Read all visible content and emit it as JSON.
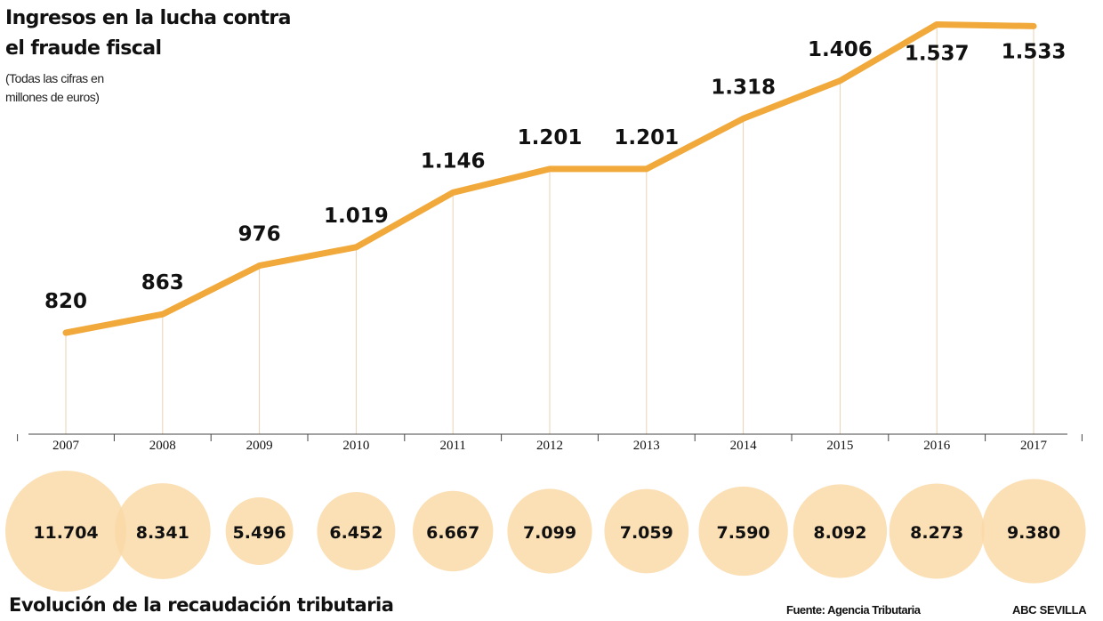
{
  "page": {
    "title_line1": "Ingresos en la lucha contra",
    "title_line2": "el fraude fiscal",
    "subtitle_line1": "(Todas las cifras en",
    "subtitle_line2": "millones de euros)",
    "footer_title": "Evolución de la recaudación tributaria",
    "source": "Fuente: Agencia Tributaria",
    "brand": "ABC SEVILLA"
  },
  "colors": {
    "line": "#f0a93a",
    "bubble": "#fad9a8",
    "bubble_overlap": "#f4c37e",
    "axis": "#444444",
    "guide": "#e8d2b4",
    "text": "#111111"
  },
  "chart_data": [
    {
      "type": "line",
      "title": "Ingresos en la lucha contra el fraude fiscal",
      "ylabel": "(Todas las cifras en millones de euros)",
      "x": [
        "2007",
        "2008",
        "2009",
        "2010",
        "2011",
        "2012",
        "2013",
        "2014",
        "2015",
        "2016",
        "2017"
      ],
      "labels": [
        "820",
        "863",
        "976",
        "1.019",
        "1.146",
        "1.201",
        "1.201",
        "1.318",
        "1.406",
        "1.537",
        "1.533"
      ],
      "values": [
        820,
        863,
        976,
        1019,
        1146,
        1201,
        1201,
        1318,
        1406,
        1537,
        1533
      ],
      "ylim": [
        600,
        1540
      ],
      "grid": false,
      "legend": "none"
    },
    {
      "type": "bubble",
      "title": "Evolución de la recaudación tributaria",
      "x": [
        "2007",
        "2008",
        "2009",
        "2010",
        "2011",
        "2012",
        "2013",
        "2014",
        "2015",
        "2016",
        "2017"
      ],
      "labels": [
        "11.704",
        "8.341",
        "5.496",
        "6.452",
        "6.667",
        "7.099",
        "7.059",
        "7.590",
        "8.092",
        "8.273",
        "9.380"
      ],
      "values": [
        11704,
        8341,
        5496,
        6452,
        6667,
        7099,
        7059,
        7590,
        8092,
        8273,
        9380
      ]
    }
  ]
}
